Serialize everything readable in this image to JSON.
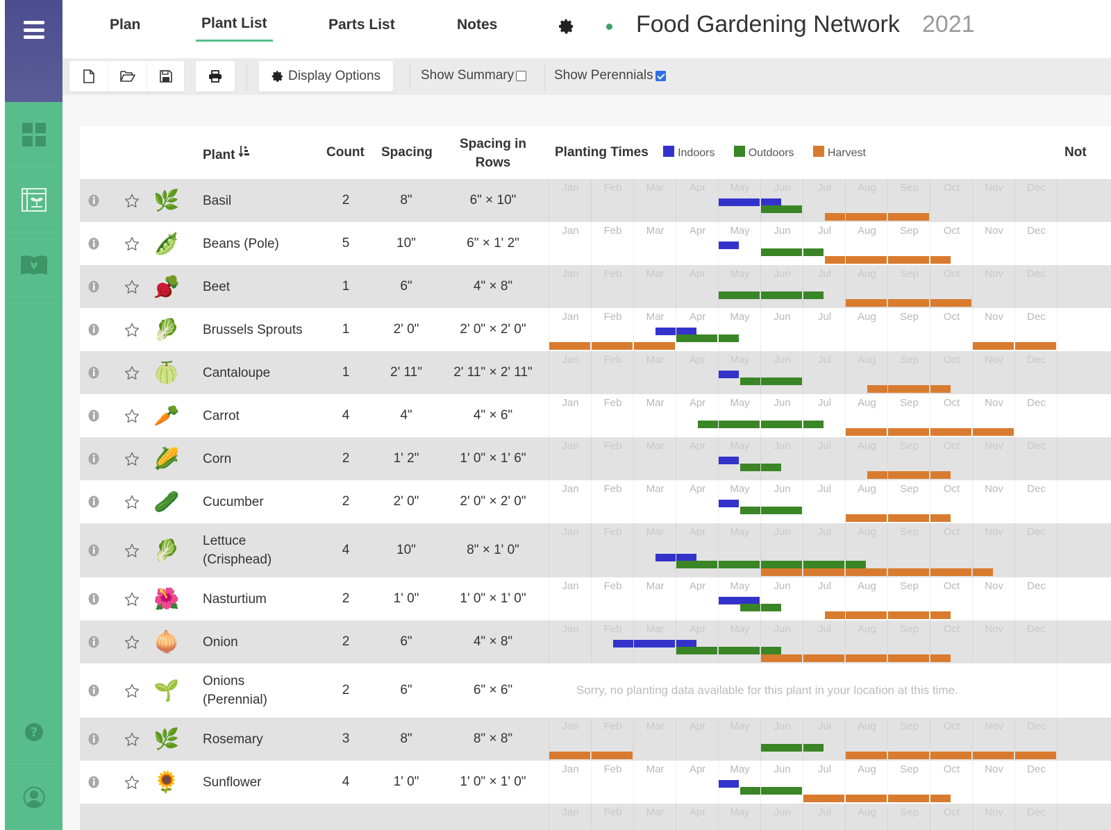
{
  "sidebar": {
    "menu_icon": "hamburger-icon",
    "items": [
      {
        "name": "dashboard",
        "icon": "grid-icon"
      },
      {
        "name": "plant-list",
        "icon": "garden-plan-icon"
      },
      {
        "name": "guide",
        "icon": "book-icon"
      }
    ],
    "bottom_items": [
      {
        "name": "help",
        "icon": "question-icon"
      },
      {
        "name": "account",
        "icon": "user-icon"
      }
    ]
  },
  "nav": {
    "tabs": [
      {
        "label": "Plan",
        "active": false
      },
      {
        "label": "Plant List",
        "active": true
      },
      {
        "label": "Parts List",
        "active": false
      },
      {
        "label": "Notes",
        "active": false
      }
    ],
    "brand": "Food Gardening Network",
    "year": "2021"
  },
  "toolbar": {
    "display_options_label": "Display Options",
    "show_summary_label": "Show Summary",
    "show_summary_checked": false,
    "show_perennials_label": "Show Perennials",
    "show_perennials_checked": true
  },
  "table": {
    "headers": {
      "plant": "Plant",
      "count": "Count",
      "spacing": "Spacing",
      "spacing_rows_line1": "Spacing in",
      "spacing_rows_line2": "Rows",
      "planting_times": "Planting Times",
      "notes": "Not"
    },
    "legend": [
      {
        "label": "Indoors",
        "color": "#3333cc"
      },
      {
        "label": "Outdoors",
        "color": "#3a8526"
      },
      {
        "label": "Harvest",
        "color": "#d97b2e"
      }
    ],
    "months": [
      "Jan",
      "Feb",
      "Mar",
      "Apr",
      "May",
      "Jun",
      "Jul",
      "Aug",
      "Sep",
      "Oct",
      "Nov",
      "Dec"
    ],
    "no_data_text": "Sorry, no planting data available for this plant in your location at this time.",
    "rows": [
      {
        "name": "Basil",
        "name2": "",
        "count": "2",
        "spacing": "8\"",
        "rows": "6\" × 10\"",
        "icon": "basil-icon",
        "emoji": "🌿",
        "indoors": [
          [
            4,
            5.5
          ]
        ],
        "outdoors": [
          [
            5,
            6
          ]
        ],
        "harvest": [
          [
            6.5,
            9
          ]
        ]
      },
      {
        "name": "Beans (Pole)",
        "name2": "",
        "count": "5",
        "spacing": "10\"",
        "rows": "6\" × 1' 2\"",
        "icon": "beans-icon",
        "emoji": "🫛",
        "indoors": [
          [
            4,
            4.5
          ]
        ],
        "outdoors": [
          [
            5,
            6.5
          ]
        ],
        "harvest": [
          [
            6.5,
            9.5
          ]
        ]
      },
      {
        "name": "Beet",
        "name2": "",
        "count": "1",
        "spacing": "6\"",
        "rows": "4\" × 8\"",
        "icon": "beet-icon",
        "emoji": "🫜",
        "indoors": [],
        "outdoors": [
          [
            4,
            6.5
          ]
        ],
        "harvest": [
          [
            7,
            10
          ]
        ]
      },
      {
        "name": "Brussels Sprouts",
        "name2": "",
        "count": "1",
        "spacing": "2' 0\"",
        "rows": "2' 0\" × 2' 0\"",
        "icon": "brussels-sprouts-icon",
        "emoji": "🥬",
        "indoors": [
          [
            2.5,
            3.5
          ]
        ],
        "outdoors": [
          [
            3,
            4.5
          ]
        ],
        "harvest": [
          [
            0,
            3
          ],
          [
            10,
            12
          ]
        ]
      },
      {
        "name": "Cantaloupe",
        "name2": "",
        "count": "1",
        "spacing": "2' 11\"",
        "rows": "2' 11\" × 2' 11\"",
        "icon": "cantaloupe-icon",
        "emoji": "🍈",
        "indoors": [
          [
            4,
            4.5
          ]
        ],
        "outdoors": [
          [
            4.5,
            6
          ]
        ],
        "harvest": [
          [
            7.5,
            9.5
          ]
        ]
      },
      {
        "name": "Carrot",
        "name2": "",
        "count": "4",
        "spacing": "4\"",
        "rows": "4\" × 6\"",
        "icon": "carrot-icon",
        "emoji": "🥕",
        "indoors": [],
        "outdoors": [
          [
            3.5,
            6.5
          ]
        ],
        "harvest": [
          [
            7,
            11
          ]
        ]
      },
      {
        "name": "Corn",
        "name2": "",
        "count": "2",
        "spacing": "1' 2\"",
        "rows": "1' 0\" × 1' 6\"",
        "icon": "corn-icon",
        "emoji": "🌽",
        "indoors": [
          [
            4,
            4.5
          ]
        ],
        "outdoors": [
          [
            4.5,
            5.5
          ]
        ],
        "harvest": [
          [
            7.5,
            9.5
          ]
        ]
      },
      {
        "name": "Cucumber",
        "name2": "",
        "count": "2",
        "spacing": "2' 0\"",
        "rows": "2' 0\" × 2' 0\"",
        "icon": "cucumber-icon",
        "emoji": "🥒",
        "indoors": [
          [
            4,
            4.5
          ]
        ],
        "outdoors": [
          [
            4.5,
            6
          ]
        ],
        "harvest": [
          [
            7,
            9.5
          ]
        ]
      },
      {
        "name": "Lettuce",
        "name2": "(Crisphead)",
        "count": "4",
        "spacing": "10\"",
        "rows": "8\" × 1' 0\"",
        "icon": "lettuce-icon",
        "emoji": "🥬",
        "indoors": [
          [
            2.5,
            3.5
          ]
        ],
        "outdoors": [
          [
            3,
            7.5
          ]
        ],
        "harvest": [
          [
            5,
            10.5
          ]
        ]
      },
      {
        "name": "Nasturtium",
        "name2": "",
        "count": "2",
        "spacing": "1' 0\"",
        "rows": "1' 0\" × 1' 0\"",
        "icon": "nasturtium-icon",
        "emoji": "🌺",
        "indoors": [
          [
            4,
            5
          ]
        ],
        "outdoors": [
          [
            4.5,
            5.5
          ]
        ],
        "harvest": [
          [
            6.5,
            9.5
          ]
        ]
      },
      {
        "name": "Onion",
        "name2": "",
        "count": "2",
        "spacing": "6\"",
        "rows": "4\" × 8\"",
        "icon": "onion-icon",
        "emoji": "🧅",
        "indoors": [
          [
            1.5,
            3.5
          ]
        ],
        "outdoors": [
          [
            3,
            5.5
          ]
        ],
        "harvest": [
          [
            5,
            9.5
          ]
        ]
      },
      {
        "name": "Onions",
        "name2": "(Perennial)",
        "count": "2",
        "spacing": "6\"",
        "rows": "6\" × 6\"",
        "icon": "onions-perennial-icon",
        "emoji": "🌱",
        "no_data": true,
        "indoors": [],
        "outdoors": [],
        "harvest": []
      },
      {
        "name": "Rosemary",
        "name2": "",
        "count": "3",
        "spacing": "8\"",
        "rows": "8\" × 8\"",
        "icon": "rosemary-icon",
        "emoji": "🌿",
        "indoors": [],
        "outdoors": [
          [
            5,
            6.5
          ]
        ],
        "harvest": [
          [
            0,
            2
          ],
          [
            7,
            12
          ]
        ]
      },
      {
        "name": "Sunflower",
        "name2": "",
        "count": "4",
        "spacing": "1' 0\"",
        "rows": "1' 0\" × 1' 0\"",
        "icon": "sunflower-icon",
        "emoji": "🌻",
        "indoors": [
          [
            4,
            4.5
          ]
        ],
        "outdoors": [
          [
            4.5,
            6
          ]
        ],
        "harvest": [
          [
            6,
            9.5
          ]
        ]
      },
      {
        "name": "",
        "name2": "",
        "count": "",
        "spacing": "",
        "rows": "",
        "icon": "plant-icon",
        "emoji": "",
        "indoors": [],
        "outdoors": [],
        "harvest": [],
        "partial": true
      }
    ]
  }
}
